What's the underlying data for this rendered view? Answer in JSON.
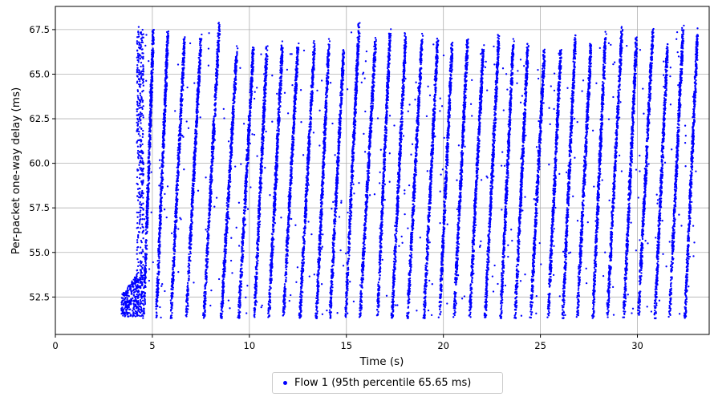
{
  "chart_data": {
    "type": "scatter",
    "title": "",
    "xlabel": "Time (s)",
    "ylabel": "Per-packet one-way delay (ms)",
    "xlim": [
      0,
      33.7
    ],
    "ylim": [
      50.4,
      68.8
    ],
    "xticks": [
      0,
      5,
      10,
      15,
      20,
      25,
      30
    ],
    "xtick_labels": [
      "0",
      "5",
      "10",
      "15",
      "20",
      "25",
      "30"
    ],
    "yticks": [
      52.5,
      55.0,
      57.5,
      60.0,
      62.5,
      65.0,
      67.5
    ],
    "ytick_labels": [
      "52.5",
      "55.0",
      "57.5",
      "60.0",
      "62.5",
      "65.0",
      "67.5"
    ],
    "grid": true,
    "legend_position": "bottom-center",
    "color": "#0000ff",
    "series": [
      {
        "name": "Flow 1 (95th percentile 65.65 ms)",
        "start_time": 3.4,
        "end_time": 33.2,
        "min_delay": 51.2,
        "max_delay": 67.9,
        "ramp_starts": [
          4.55,
          5.2,
          5.95,
          6.75,
          7.65,
          8.55,
          9.45,
          10.25,
          11.0,
          11.75,
          12.6,
          13.45,
          14.15,
          14.95,
          15.7,
          16.6,
          17.35,
          18.15,
          19.0,
          19.8,
          20.55,
          21.35,
          22.15,
          22.95,
          23.7,
          24.5,
          25.4,
          26.15,
          26.9,
          27.7,
          28.45,
          29.3,
          30.05,
          30.9,
          31.65,
          32.45
        ],
        "ramp_ends": [
          5.05,
          5.8,
          6.65,
          7.5,
          8.45,
          9.35,
          10.2,
          10.9,
          11.7,
          12.5,
          13.35,
          14.1,
          14.85,
          15.65,
          16.5,
          17.25,
          18.05,
          18.9,
          19.7,
          20.45,
          21.25,
          22.05,
          22.85,
          23.6,
          24.35,
          25.2,
          26.05,
          26.8,
          27.6,
          28.35,
          29.2,
          29.95,
          30.8,
          31.55,
          32.35,
          33.1
        ],
        "ramp_peaks": [
          67.4,
          67.3,
          66.8,
          66.9,
          67.7,
          66.2,
          66.3,
          66.3,
          66.6,
          66.4,
          66.6,
          66.6,
          66.1,
          67.6,
          66.8,
          67.2,
          67.0,
          66.9,
          66.8,
          66.6,
          66.9,
          66.3,
          66.9,
          66.6,
          66.5,
          66.2,
          66.3,
          67.0,
          66.5,
          67.0,
          67.4,
          66.9,
          67.5,
          66.5,
          67.4,
          67.2
        ]
      }
    ]
  }
}
